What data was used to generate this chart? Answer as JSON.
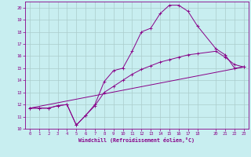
{
  "title": "",
  "xlabel": "Windchill (Refroidissement éolien,°C)",
  "ylabel": "",
  "bg_color": "#c8eef0",
  "line_color": "#880088",
  "grid_color": "#aacccc",
  "xlim": [
    -0.5,
    23.5
  ],
  "ylim": [
    10,
    20.5
  ],
  "xticks": [
    0,
    1,
    2,
    3,
    4,
    5,
    6,
    7,
    8,
    9,
    10,
    11,
    12,
    13,
    14,
    15,
    16,
    17,
    18,
    20,
    21,
    22,
    23
  ],
  "yticks": [
    10,
    11,
    12,
    13,
    14,
    15,
    16,
    17,
    18,
    19,
    20
  ],
  "line1_x": [
    0,
    1,
    2,
    3,
    4,
    5,
    6,
    7,
    8,
    9,
    10,
    11,
    12,
    13,
    14,
    15,
    16,
    17,
    18,
    20,
    21,
    22,
    23
  ],
  "line1_y": [
    11.7,
    11.7,
    11.7,
    11.9,
    12.0,
    10.3,
    11.1,
    12.0,
    13.9,
    14.8,
    15.0,
    16.4,
    18.0,
    18.3,
    19.5,
    20.2,
    20.2,
    19.7,
    18.5,
    16.6,
    16.1,
    15.0,
    15.1
  ],
  "line2_x": [
    0,
    1,
    2,
    3,
    4,
    5,
    6,
    7,
    8,
    9,
    10,
    11,
    12,
    13,
    14,
    15,
    16,
    17,
    18,
    20,
    21,
    22,
    23
  ],
  "line2_y": [
    11.7,
    11.7,
    11.7,
    11.9,
    12.0,
    10.3,
    11.1,
    11.9,
    13.0,
    13.5,
    14.0,
    14.5,
    14.9,
    15.2,
    15.5,
    15.7,
    15.9,
    16.1,
    16.2,
    16.4,
    15.9,
    15.3,
    15.1
  ],
  "line3_x": [
    0,
    23
  ],
  "line3_y": [
    11.7,
    15.1
  ],
  "tick_fontsize": 4.0,
  "xlabel_fontsize": 4.8,
  "marker_size": 2.5
}
